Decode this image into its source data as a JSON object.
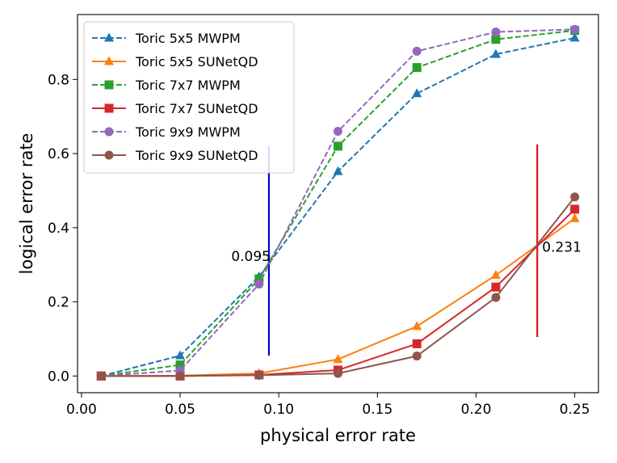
{
  "chart_data": {
    "type": "line",
    "title": "",
    "xlabel": "physical error rate",
    "ylabel": "logical error rate",
    "xlim": [
      -0.002,
      0.262
    ],
    "ylim": [
      -0.045,
      0.975
    ],
    "xticks": [
      0.0,
      0.05,
      0.1,
      0.15,
      0.2,
      0.25
    ],
    "xtick_labels": [
      "0.00",
      "0.05",
      "0.10",
      "0.15",
      "0.20",
      "0.25"
    ],
    "yticks": [
      0.0,
      0.2,
      0.4,
      0.6,
      0.8
    ],
    "ytick_labels": [
      "0.0",
      "0.2",
      "0.4",
      "0.6",
      "0.8"
    ],
    "grid": false,
    "legend_position": "top-left",
    "series": [
      {
        "name": "Toric 5x5 MWPM",
        "color": "#1f77b4",
        "linestyle": "dashed",
        "marker": "triangle",
        "x": [
          0.01,
          0.05,
          0.09,
          0.13,
          0.17,
          0.21,
          0.25
        ],
        "y": [
          0.0,
          0.055,
          0.268,
          0.552,
          0.762,
          0.868,
          0.912
        ]
      },
      {
        "name": "Toric 5x5 SUNetQD",
        "color": "#ff7f0e",
        "linestyle": "solid",
        "marker": "triangle",
        "x": [
          0.01,
          0.05,
          0.09,
          0.13,
          0.17,
          0.21,
          0.25
        ],
        "y": [
          0.0,
          0.001,
          0.007,
          0.045,
          0.134,
          0.272,
          0.425
        ]
      },
      {
        "name": "Toric 7x7 MWPM",
        "color": "#2ca02c",
        "linestyle": "dashed",
        "marker": "square",
        "x": [
          0.01,
          0.05,
          0.09,
          0.13,
          0.17,
          0.21,
          0.25
        ],
        "y": [
          0.0,
          0.03,
          0.262,
          0.62,
          0.832,
          0.908,
          0.932
        ]
      },
      {
        "name": "Toric 7x7 SUNetQD",
        "color": "#d62728",
        "linestyle": "solid",
        "marker": "square",
        "x": [
          0.01,
          0.05,
          0.09,
          0.13,
          0.17,
          0.21,
          0.25
        ],
        "y": [
          0.0,
          0.0,
          0.003,
          0.016,
          0.087,
          0.24,
          0.45
        ]
      },
      {
        "name": "Toric 9x9 MWPM",
        "color": "#9467bd",
        "linestyle": "dashed",
        "marker": "circle",
        "x": [
          0.01,
          0.05,
          0.09,
          0.13,
          0.17,
          0.21,
          0.25
        ],
        "y": [
          0.0,
          0.015,
          0.248,
          0.66,
          0.876,
          0.928,
          0.935
        ]
      },
      {
        "name": "Toric 9x9 SUNetQD",
        "color": "#8c564b",
        "linestyle": "solid",
        "marker": "circle",
        "x": [
          0.01,
          0.05,
          0.09,
          0.13,
          0.17,
          0.21,
          0.25
        ],
        "y": [
          0.0,
          0.0,
          0.002,
          0.007,
          0.054,
          0.212,
          0.483
        ]
      }
    ],
    "threshold_lines": [
      {
        "label": "0.095",
        "x": 0.095,
        "y_from": 0.055,
        "y_to": 0.62,
        "color": "#0000cd"
      },
      {
        "label": "0.231",
        "x": 0.231,
        "y_from": 0.105,
        "y_to": 0.625,
        "color": "#dd1111"
      }
    ]
  }
}
